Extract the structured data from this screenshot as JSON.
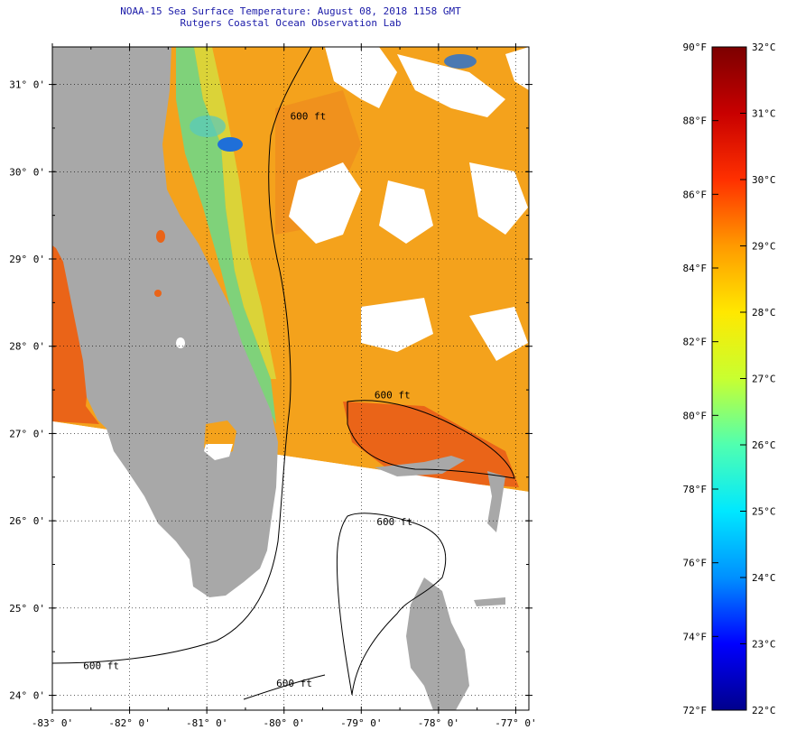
{
  "header": {
    "title": "NOAA-15 Sea Surface Temperature:  August 08, 2018 1158 GMT",
    "subtitle": "Rutgers Coastal Ocean Observation Lab"
  },
  "map": {
    "lon_range": [
      -83,
      -76.83
    ],
    "lat_range": [
      23.83,
      31.43
    ],
    "lat_labels": [
      {
        "lat": 31,
        "text": "31° 0'"
      },
      {
        "lat": 30,
        "text": "30° 0'"
      },
      {
        "lat": 29,
        "text": "29° 0'"
      },
      {
        "lat": 28,
        "text": "28° 0'"
      },
      {
        "lat": 27,
        "text": "27° 0'"
      },
      {
        "lat": 26,
        "text": "26° 0'"
      },
      {
        "lat": 25,
        "text": "25° 0'"
      },
      {
        "lat": 24,
        "text": "24° 0'"
      }
    ],
    "lon_labels": [
      {
        "lon": -83,
        "text": "-83° 0'"
      },
      {
        "lon": -82,
        "text": "-82° 0'"
      },
      {
        "lon": -81,
        "text": "-81° 0'"
      },
      {
        "lon": -80,
        "text": "-80° 0'"
      },
      {
        "lon": -79,
        "text": "-79° 0'"
      },
      {
        "lon": -78,
        "text": "-78° 0'"
      },
      {
        "lon": -77,
        "text": "-77° 0'"
      }
    ],
    "isobath_labels": [
      {
        "text": "600 ft",
        "lon": -79.92,
        "lat": 30.6
      },
      {
        "text": "600 ft",
        "lon": -78.83,
        "lat": 27.4
      },
      {
        "text": "600 ft",
        "lon": -78.8,
        "lat": 25.95
      },
      {
        "text": "600 ft",
        "lon": -82.6,
        "lat": 24.3
      },
      {
        "text": "600 ft",
        "lon": -80.1,
        "lat": 24.1
      }
    ],
    "colors": {
      "land": "#a8a8a8",
      "cloud": "#ffffff",
      "sst_main": "#f4a21c",
      "sst_warm": "#ea6418",
      "sst_cool": "#7fd27a",
      "sst_cold": "#1f6fd8",
      "contour": "#000000"
    }
  },
  "colorbar": {
    "f_labels": [
      "90°F",
      "88°F",
      "86°F",
      "84°F",
      "82°F",
      "80°F",
      "78°F",
      "76°F",
      "74°F",
      "72°F"
    ],
    "c_labels": [
      "32°C",
      "31°C",
      "30°C",
      "29°C",
      "28°C",
      "27°C",
      "26°C",
      "25°C",
      "24°C",
      "23°C",
      "22°C"
    ],
    "f_range": [
      72,
      90
    ],
    "c_range": [
      22,
      32
    ],
    "gradient": [
      "#00008c",
      "#0000ff",
      "#0090ff",
      "#00e8ff",
      "#50ffb0",
      "#c8ff30",
      "#ffe800",
      "#ff9a00",
      "#ff3000",
      "#c80000",
      "#7c0000"
    ]
  }
}
